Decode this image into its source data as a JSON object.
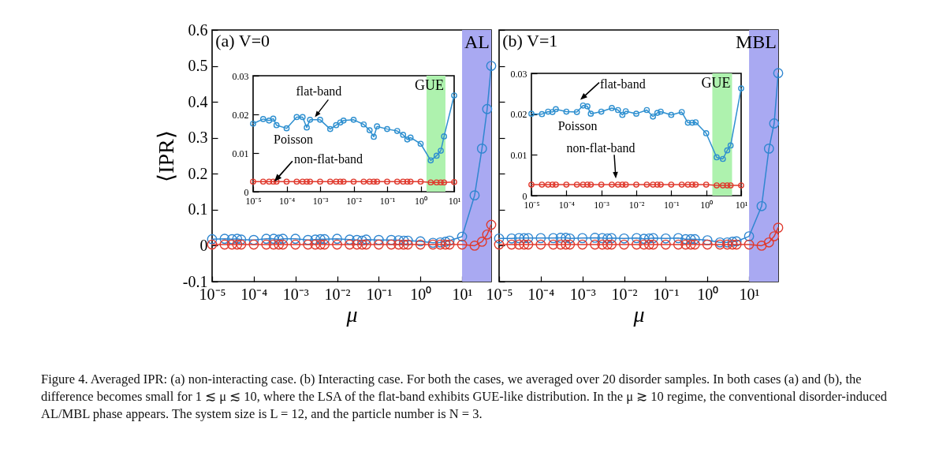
{
  "chart_data": [
    {
      "type": "line",
      "xlabel": "μ",
      "ylabel": "⟨IPR⟩",
      "log": "x",
      "marker": "circle",
      "tick_labels": "xy",
      "x": [
        1e-05,
        2e-05,
        3e-05,
        4e-05,
        5e-05,
        0.0001,
        0.0002,
        0.0003,
        0.0004,
        0.0005,
        0.001,
        0.002,
        0.003,
        0.004,
        0.005,
        0.01,
        0.02,
        0.03,
        0.04,
        0.05,
        0.1,
        0.2,
        0.3,
        0.4,
        0.5,
        1,
        2,
        3,
        4,
        5,
        10,
        20,
        30,
        40,
        50
      ],
      "series": [
        {
          "color": "#2f86d0",
          "values": [
            0.018,
            0.019,
            0.018,
            0.019,
            0.017,
            0.016,
            0.019,
            0.019,
            0.017,
            0.019,
            0.019,
            0.016,
            0.017,
            0.018,
            0.018,
            0.019,
            0.017,
            0.016,
            0.014,
            0.017,
            0.016,
            0.016,
            0.015,
            0.014,
            0.014,
            0.012,
            0.008,
            0.009,
            0.011,
            0.014,
            0.025,
            0.14,
            0.27,
            0.38,
            0.5
          ]
        },
        {
          "color": "#e03a2e",
          "values": [
            0.003,
            0.003,
            0.003,
            0.003,
            0.003,
            0.003,
            0.003,
            0.003,
            0.003,
            0.003,
            0.003,
            0.003,
            0.003,
            0.003,
            0.003,
            0.003,
            0.003,
            0.003,
            0.003,
            0.003,
            0.003,
            0.003,
            0.003,
            0.003,
            0.003,
            0.003,
            0.003,
            0.003,
            0.003,
            0.003,
            0.003,
            0.0,
            0.011,
            0.031,
            0.058
          ]
        }
      ],
      "xlim": [
        1e-05,
        50
      ],
      "ylim": [
        -0.1,
        0.6
      ],
      "xticks": [
        {
          "value": 1e-05,
          "label": "10⁻⁵"
        },
        {
          "value": 0.0001,
          "label": "10⁻⁴"
        },
        {
          "value": 0.001,
          "label": "10⁻³"
        },
        {
          "value": 0.01,
          "label": "10⁻²"
        },
        {
          "value": 0.1,
          "label": "10⁻¹"
        },
        {
          "value": 1,
          "label": "10⁰"
        },
        {
          "value": 10,
          "label": "10¹"
        }
      ],
      "yticks": [
        -0.1,
        0,
        0.1,
        0.2,
        0.3,
        0.4,
        0.5,
        0.6
      ],
      "bands": [
        {
          "axis": "x",
          "from": 10,
          "to": 50,
          "label": "AL",
          "color": "#a9a9f2"
        }
      ],
      "annotations": [
        "(a) V=0",
        "Figure 4. Averaged IPR: (a) non-interacting case. (b) Interacting case. For both the cases, we averaged over 20 disorder samples. In both cases (a) and (b), the difference becomes small for 1 ≲ μ ≲ 10, where the LSA of the flat-band exhibits GUE-like distribution. In the μ ≳ 10 regime, the conventional disorder-induced AL/MBL phase appears. The system size is L = 12, and the particle number is N = 3."
      ]
    },
    {
      "type": "line",
      "log": "x",
      "marker": "circle",
      "x": [
        1e-05,
        2e-05,
        3e-05,
        4e-05,
        5e-05,
        0.0001,
        0.0002,
        0.0003,
        0.0004,
        0.0005,
        0.001,
        0.002,
        0.003,
        0.004,
        0.005,
        0.01,
        0.02,
        0.03,
        0.04,
        0.05,
        0.1,
        0.2,
        0.3,
        0.4,
        0.5,
        1,
        2,
        3,
        4,
        5,
        10
      ],
      "series": [
        {
          "color": "#2f90d0",
          "values": [
            0.0176,
            0.0188,
            0.0184,
            0.0189,
            0.0172,
            0.0164,
            0.0193,
            0.0193,
            0.0166,
            0.0186,
            0.0186,
            0.0162,
            0.0172,
            0.0179,
            0.0184,
            0.0186,
            0.0174,
            0.0159,
            0.0142,
            0.0169,
            0.0162,
            0.0157,
            0.0147,
            0.0135,
            0.014,
            0.0124,
            0.0081,
            0.0093,
            0.0106,
            0.0143,
            0.0249
          ]
        },
        {
          "color": "#e03a2e",
          "values": [
            0.0026,
            0.0026,
            0.0026,
            0.0026,
            0.0026,
            0.0026,
            0.0026,
            0.0026,
            0.0026,
            0.0026,
            0.0026,
            0.0026,
            0.0026,
            0.0026,
            0.0026,
            0.0026,
            0.0026,
            0.0026,
            0.0026,
            0.0026,
            0.0026,
            0.0026,
            0.0026,
            0.0026,
            0.0026,
            0.0026,
            0.0024,
            0.0024,
            0.0024,
            0.0024,
            0.0025
          ]
        }
      ],
      "xlim": [
        1e-05,
        10
      ],
      "ylim": [
        0,
        0.03
      ],
      "xticks": [
        {
          "value": 1e-05,
          "label": "10⁻⁵"
        },
        {
          "value": 0.0001,
          "label": "10⁻⁴"
        },
        {
          "value": 0.001,
          "label": "10⁻³"
        },
        {
          "value": 0.01,
          "label": "10⁻²"
        },
        {
          "value": 0.1,
          "label": "10⁻¹"
        },
        {
          "value": 1,
          "label": "10⁰"
        },
        {
          "value": 10,
          "label": "10¹"
        }
      ],
      "yticks": [
        0,
        0.01,
        0.02,
        0.03
      ],
      "bands": [
        {
          "axis": "x",
          "from": 1.5,
          "to": 5.5,
          "label": "GUE",
          "color": "#aef2ae"
        }
      ],
      "annotations": [
        "Poisson",
        {
          "text": "flat-band",
          "x": 0.0007,
          "y": 0.0193
        },
        {
          "text": "non-flat-band",
          "x": 4.3e-05,
          "y": 0.0026
        }
      ]
    },
    {
      "type": "line",
      "xlabel": "μ",
      "log": "x",
      "marker": "circle",
      "tick_labels": "x",
      "x": [
        1e-05,
        2e-05,
        3e-05,
        4e-05,
        5e-05,
        0.0001,
        0.0002,
        0.0003,
        0.0004,
        0.0005,
        0.001,
        0.002,
        0.003,
        0.004,
        0.005,
        0.01,
        0.02,
        0.03,
        0.04,
        0.05,
        0.1,
        0.2,
        0.3,
        0.4,
        0.5,
        1,
        2,
        3,
        4,
        5,
        10,
        20,
        30,
        40,
        50
      ],
      "series": [
        {
          "color": "#2f86d0",
          "values": [
            0.02,
            0.02,
            0.021,
            0.021,
            0.021,
            0.021,
            0.021,
            0.022,
            0.022,
            0.02,
            0.021,
            0.022,
            0.021,
            0.02,
            0.021,
            0.02,
            0.021,
            0.019,
            0.02,
            0.021,
            0.02,
            0.021,
            0.018,
            0.018,
            0.018,
            0.015,
            0.009,
            0.009,
            0.011,
            0.012,
            0.026,
            0.11,
            0.27,
            0.34,
            0.48
          ]
        },
        {
          "color": "#e03a2e",
          "values": [
            0.003,
            0.003,
            0.003,
            0.003,
            0.003,
            0.003,
            0.003,
            0.003,
            0.003,
            0.003,
            0.003,
            0.003,
            0.003,
            0.003,
            0.003,
            0.003,
            0.003,
            0.003,
            0.003,
            0.003,
            0.003,
            0.003,
            0.003,
            0.003,
            0.003,
            0.003,
            0.003,
            0.003,
            0.003,
            0.003,
            0.003,
            0.0,
            0.009,
            0.026,
            0.05
          ]
        }
      ],
      "xlim": [
        1e-05,
        50
      ],
      "ylim": [
        -0.1,
        0.6
      ],
      "xticks": [
        {
          "value": 1e-05,
          "label": "10⁻⁵"
        },
        {
          "value": 0.0001,
          "label": "10⁻⁴"
        },
        {
          "value": 0.001,
          "label": "10⁻³"
        },
        {
          "value": 0.01,
          "label": "10⁻²"
        },
        {
          "value": 0.1,
          "label": "10⁻¹"
        },
        {
          "value": 1,
          "label": "10⁰"
        },
        {
          "value": 10,
          "label": "10¹"
        }
      ],
      "yticks": [
        -0.1,
        0,
        0.1,
        0.2,
        0.3,
        0.4,
        0.5,
        0.6
      ],
      "bands": [
        {
          "axis": "x",
          "from": 10,
          "to": 50,
          "label": "MBL",
          "color": "#a9a9f2"
        }
      ],
      "annotations": [
        "(b) V=1"
      ]
    },
    {
      "type": "line",
      "log": "x",
      "marker": "circle",
      "x": [
        1e-05,
        2e-05,
        3e-05,
        4e-05,
        5e-05,
        0.0001,
        0.0002,
        0.0003,
        0.0004,
        0.0005,
        0.001,
        0.002,
        0.003,
        0.004,
        0.005,
        0.01,
        0.02,
        0.03,
        0.04,
        0.05,
        0.1,
        0.2,
        0.3,
        0.4,
        0.5,
        1,
        2,
        3,
        4,
        5,
        10
      ],
      "series": [
        {
          "color": "#2f90d0",
          "values": [
            0.0201,
            0.02,
            0.0206,
            0.0205,
            0.0212,
            0.0206,
            0.0205,
            0.0221,
            0.0219,
            0.0201,
            0.0206,
            0.0215,
            0.021,
            0.0198,
            0.0207,
            0.0201,
            0.021,
            0.0194,
            0.0203,
            0.0206,
            0.0198,
            0.0205,
            0.0179,
            0.0179,
            0.018,
            0.0153,
            0.0094,
            0.009,
            0.0111,
            0.0123,
            0.0263
          ]
        },
        {
          "color": "#e03a2e",
          "values": [
            0.0027,
            0.0027,
            0.0027,
            0.0027,
            0.0027,
            0.0027,
            0.0027,
            0.0027,
            0.0027,
            0.0027,
            0.0027,
            0.0027,
            0.0027,
            0.0027,
            0.0027,
            0.0027,
            0.0027,
            0.0027,
            0.0027,
            0.0027,
            0.0027,
            0.0027,
            0.0027,
            0.0027,
            0.0027,
            0.0027,
            0.0025,
            0.0025,
            0.0025,
            0.0025,
            0.0025
          ]
        }
      ],
      "xlim": [
        1e-05,
        10
      ],
      "ylim": [
        0,
        0.03
      ],
      "xticks": [
        {
          "value": 1e-05,
          "label": "10⁻⁵"
        },
        {
          "value": 0.0001,
          "label": "10⁻⁴"
        },
        {
          "value": 0.001,
          "label": "10⁻³"
        },
        {
          "value": 0.01,
          "label": "10⁻²"
        },
        {
          "value": 0.1,
          "label": "10⁻¹"
        },
        {
          "value": 1,
          "label": "10⁰"
        },
        {
          "value": 10,
          "label": "10¹"
        }
      ],
      "yticks": [
        0,
        0.01,
        0.02,
        0.03
      ],
      "bands": [
        {
          "axis": "x",
          "from": 1.5,
          "to": 5.5,
          "label": "GUE",
          "color": "#aef2ae"
        }
      ],
      "annotations": [
        "Poisson",
        {
          "text": "flat-band",
          "x": 0.00025,
          "y": 0.0235
        },
        {
          "text": "non-flat-band",
          "x": 0.0026,
          "y": 0.0042
        }
      ]
    }
  ]
}
